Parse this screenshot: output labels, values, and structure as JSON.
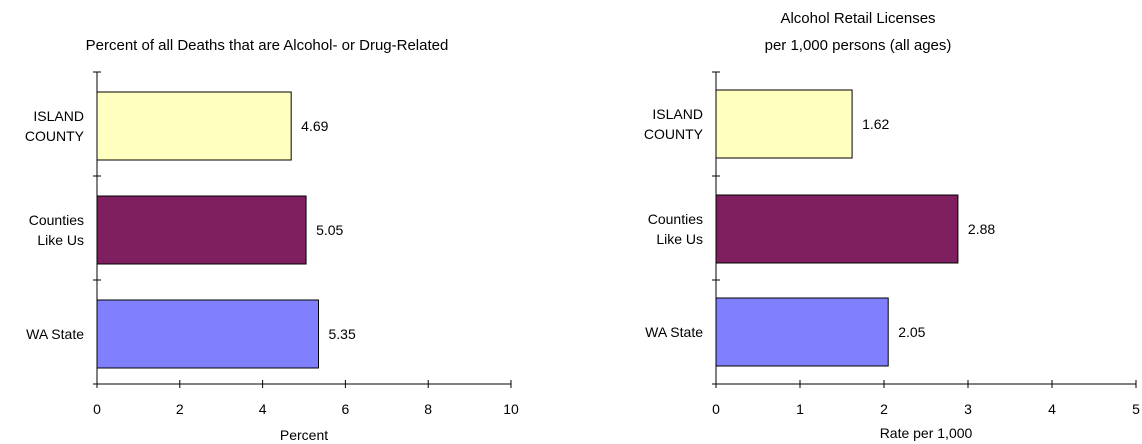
{
  "chart_data": [
    {
      "type": "bar",
      "orientation": "horizontal",
      "title_lines": [
        "Percent of all Deaths that are Alcohol- or Drug-Related"
      ],
      "xlabel": "Percent",
      "ylabel": "",
      "xlim": [
        0,
        10
      ],
      "xticks": [
        0,
        2,
        4,
        6,
        8,
        10
      ],
      "grid": false,
      "categories": [
        {
          "lines": [
            "ISLAND",
            "COUNTY"
          ]
        },
        {
          "lines": [
            "Counties",
            "Like Us"
          ]
        },
        {
          "lines": [
            "WA State"
          ]
        }
      ],
      "values": [
        4.69,
        5.05,
        5.35
      ],
      "value_labels": [
        "4.69",
        "5.05",
        "5.35"
      ],
      "colors": [
        "#FFFFC0",
        "#7F1F5F",
        "#8080FF"
      ]
    },
    {
      "type": "bar",
      "orientation": "horizontal",
      "title_lines": [
        "Alcohol Retail Licenses",
        "per 1,000 persons (all ages)"
      ],
      "xlabel": "Rate per 1,000",
      "ylabel": "",
      "xlim": [
        0,
        5
      ],
      "xticks": [
        0,
        1,
        2,
        3,
        4,
        5
      ],
      "grid": false,
      "categories": [
        {
          "lines": [
            "ISLAND",
            "COUNTY"
          ]
        },
        {
          "lines": [
            "Counties",
            "Like Us"
          ]
        },
        {
          "lines": [
            "WA State"
          ]
        }
      ],
      "values": [
        1.62,
        2.88,
        2.05
      ],
      "value_labels": [
        "1.62",
        "2.88",
        "2.05"
      ],
      "colors": [
        "#FFFFC0",
        "#7F1F5F",
        "#8080FF"
      ]
    }
  ]
}
